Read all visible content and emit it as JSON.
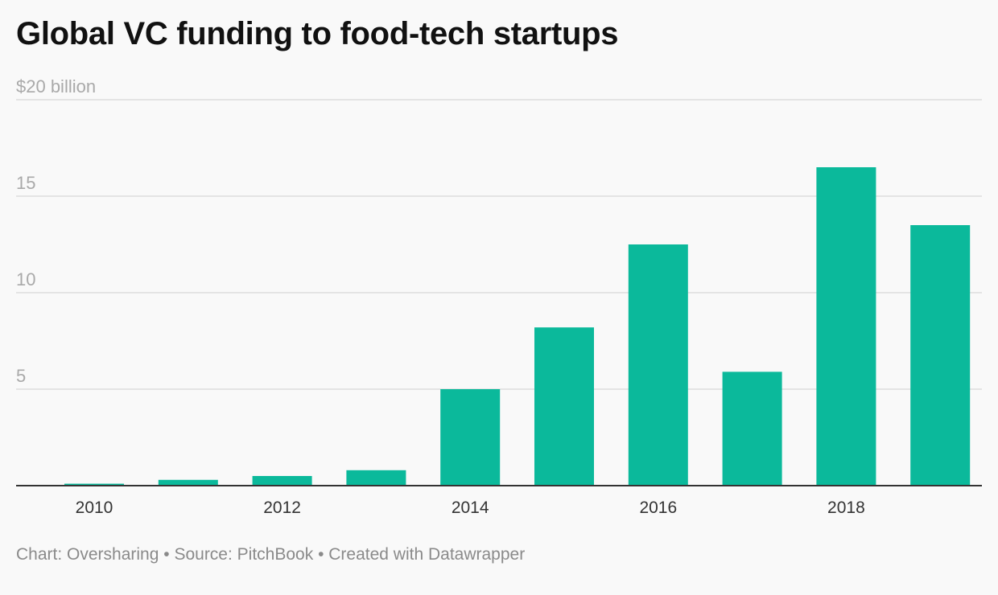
{
  "header": {
    "title": "Global VC funding to food-tech startups"
  },
  "footer": {
    "chart_credit": "Chart: Oversharing",
    "separator": "•",
    "source": "Source: PitchBook",
    "tool": "Created with Datawrapper"
  },
  "chart_data": {
    "type": "bar",
    "title": "Global VC funding to food-tech startups",
    "xlabel": "",
    "ylabel": "",
    "categories": [
      "2010",
      "2011",
      "2012",
      "2013",
      "2014",
      "2015",
      "2016",
      "2017",
      "2018",
      "2019"
    ],
    "values": [
      0.1,
      0.3,
      0.5,
      0.8,
      5.0,
      8.2,
      12.5,
      5.9,
      16.5,
      13.5
    ],
    "x_tick_labels": [
      "2010",
      "",
      "2012",
      "",
      "2014",
      "",
      "2016",
      "",
      "2018",
      ""
    ],
    "ylim": [
      0,
      20
    ],
    "y_ticks": [
      {
        "value": 20,
        "label": "$20 billion"
      },
      {
        "value": 15,
        "label": "15"
      },
      {
        "value": 10,
        "label": "10"
      },
      {
        "value": 5,
        "label": "5"
      }
    ],
    "grid": true,
    "bar_color": "#0bb99b",
    "grid_color": "#dddddd",
    "axis_color": "#333333"
  }
}
